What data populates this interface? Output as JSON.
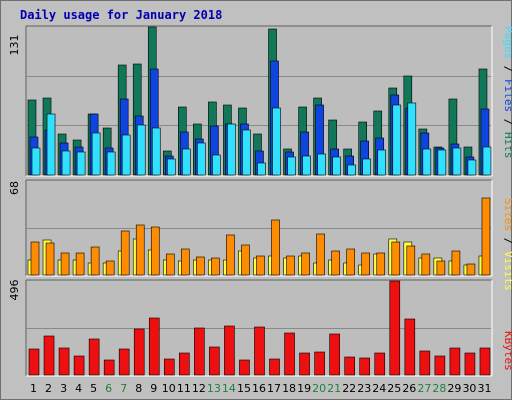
{
  "title": "Daily usage for January 2018",
  "colors": {
    "background": "#c0c0c0",
    "panel": "#bdbdbd",
    "hits": "#107858",
    "files": "#1044e0",
    "pages": "#30e0ff",
    "visits": "#ffff40",
    "sites": "#ff8c00",
    "kbytes": "#ee1010",
    "weekday_label": "#000000",
    "weekend_label": "#208040",
    "title": "#0000b0"
  },
  "chart_data": [
    {
      "type": "bar",
      "panel": "hits-files-pages",
      "ymax_label": "131",
      "ylim": [
        0,
        131
      ],
      "legend": {
        "pages": "Pages",
        "sep1": " / ",
        "files": "Files",
        "sep2": " / ",
        "hits": "Hits"
      },
      "categories": [
        "1",
        "2",
        "3",
        "4",
        "5",
        "6",
        "7",
        "8",
        "9",
        "10",
        "11",
        "12",
        "13",
        "14",
        "15",
        "16",
        "17",
        "18",
        "19",
        "20",
        "21",
        "22",
        "23",
        "24",
        "25",
        "26",
        "27",
        "28",
        "29",
        "30",
        "31"
      ],
      "series": [
        {
          "name": "Hits",
          "values": [
            66,
            68,
            36,
            31,
            54,
            42,
            97,
            98,
            131,
            21,
            60,
            45,
            65,
            62,
            59,
            36,
            129,
            23,
            60,
            68,
            49,
            23,
            47,
            57,
            77,
            88,
            41,
            25,
            67,
            25,
            94
          ]
        },
        {
          "name": "Files",
          "values": [
            34,
            40,
            28,
            25,
            54,
            24,
            67,
            52,
            94,
            17,
            38,
            32,
            43,
            45,
            45,
            21,
            101,
            20,
            38,
            62,
            23,
            17,
            30,
            33,
            71,
            59,
            37,
            24,
            27,
            16,
            58
          ]
        },
        {
          "name": "Pages",
          "values": [
            24,
            54,
            21,
            20,
            37,
            20,
            35,
            44,
            42,
            14,
            23,
            28,
            18,
            45,
            40,
            11,
            59,
            16,
            17,
            19,
            16,
            9,
            14,
            22,
            62,
            64,
            23,
            22,
            24,
            13,
            25
          ]
        }
      ]
    },
    {
      "type": "bar",
      "panel": "visits-sites",
      "ymax_label": "68",
      "ylim": [
        0,
        68
      ],
      "legend": {
        "sites": "Sites",
        "sep1": " / ",
        "visits": "Visits"
      },
      "categories": [
        "1",
        "2",
        "3",
        "4",
        "5",
        "6",
        "7",
        "8",
        "9",
        "10",
        "11",
        "12",
        "13",
        "14",
        "15",
        "16",
        "17",
        "18",
        "19",
        "20",
        "21",
        "22",
        "23",
        "24",
        "25",
        "26",
        "27",
        "28",
        "29",
        "30",
        "31"
      ],
      "series": [
        {
          "name": "Visits",
          "values": [
            11,
            25,
            11,
            11,
            9,
            9,
            17,
            26,
            18,
            11,
            10,
            11,
            11,
            11,
            17,
            12,
            14,
            12,
            14,
            9,
            11,
            9,
            7,
            15,
            26,
            24,
            12,
            12,
            10,
            7,
            14
          ]
        },
        {
          "name": "Sites",
          "values": [
            24,
            23,
            16,
            16,
            20,
            10,
            32,
            36,
            35,
            15,
            19,
            13,
            12,
            29,
            22,
            14,
            40,
            14,
            16,
            30,
            17,
            19,
            16,
            16,
            24,
            21,
            15,
            10,
            17,
            8,
            56
          ]
        }
      ]
    },
    {
      "type": "bar",
      "panel": "kbytes",
      "ymax_label": "496",
      "ylim": [
        0,
        496
      ],
      "legend": {
        "kbytes": "KBytes"
      },
      "categories": [
        "1",
        "2",
        "3",
        "4",
        "5",
        "6",
        "7",
        "8",
        "9",
        "10",
        "11",
        "12",
        "13",
        "14",
        "15",
        "16",
        "17",
        "18",
        "19",
        "20",
        "21",
        "22",
        "23",
        "24",
        "25",
        "26",
        "27",
        "28",
        "29",
        "30",
        "31"
      ],
      "series": [
        {
          "name": "KBytes",
          "values": [
            139,
            208,
            141,
            100,
            190,
            78,
            138,
            244,
            300,
            85,
            118,
            250,
            148,
            260,
            80,
            253,
            86,
            221,
            118,
            119,
            217,
            97,
            92,
            117,
            496,
            293,
            126,
            100,
            144,
            116,
            140
          ]
        }
      ]
    }
  ],
  "x_labels": [
    {
      "text": "1",
      "weekend": false
    },
    {
      "text": "2",
      "weekend": false
    },
    {
      "text": "3",
      "weekend": false
    },
    {
      "text": "4",
      "weekend": false
    },
    {
      "text": "5",
      "weekend": false
    },
    {
      "text": "6",
      "weekend": true
    },
    {
      "text": "7",
      "weekend": true
    },
    {
      "text": "8",
      "weekend": false
    },
    {
      "text": "9",
      "weekend": false
    },
    {
      "text": "10",
      "weekend": false
    },
    {
      "text": "11",
      "weekend": false
    },
    {
      "text": "12",
      "weekend": false
    },
    {
      "text": "13",
      "weekend": true
    },
    {
      "text": "14",
      "weekend": true
    },
    {
      "text": "15",
      "weekend": false
    },
    {
      "text": "16",
      "weekend": false
    },
    {
      "text": "17",
      "weekend": false
    },
    {
      "text": "18",
      "weekend": false
    },
    {
      "text": "19",
      "weekend": false
    },
    {
      "text": "20",
      "weekend": true
    },
    {
      "text": "21",
      "weekend": true
    },
    {
      "text": "22",
      "weekend": false
    },
    {
      "text": "23",
      "weekend": false
    },
    {
      "text": "24",
      "weekend": false
    },
    {
      "text": "25",
      "weekend": false
    },
    {
      "text": "26",
      "weekend": false
    },
    {
      "text": "27",
      "weekend": true
    },
    {
      "text": "28",
      "weekend": true
    },
    {
      "text": "29",
      "weekend": false
    },
    {
      "text": "30",
      "weekend": false
    },
    {
      "text": "31",
      "weekend": false
    }
  ]
}
